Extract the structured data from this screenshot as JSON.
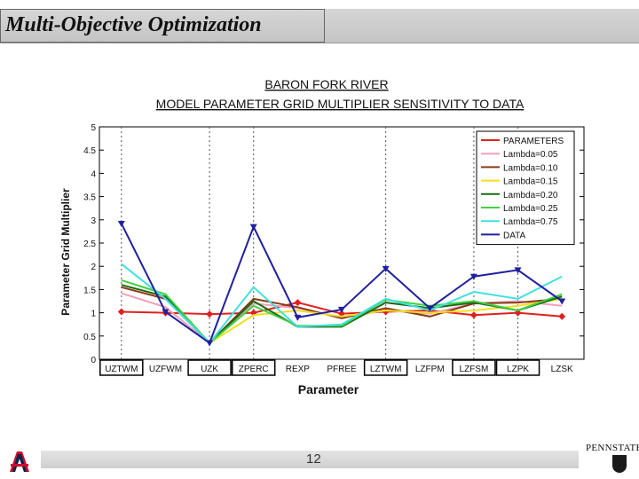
{
  "slide": {
    "title": "Multi-Objective Optimization",
    "page_number": "12",
    "brand": "PENNSTATE",
    "logo_letter": "A"
  },
  "chart_data": {
    "type": "line",
    "title": "BARON FORK RIVER",
    "subtitle": "MODEL PARAMETER GRID MULTIPLIER SENSITIVITY TO DATA",
    "xlabel": "Parameter",
    "ylabel": "Parameter Grid Multiplier",
    "ylim": [
      0,
      5
    ],
    "yticks": [
      "0",
      "0.5",
      "1",
      "1.5",
      "2",
      "2.5",
      "3",
      "3.5",
      "4",
      "4.5",
      "5"
    ],
    "categories": [
      "UZTWM",
      "UZFWM",
      "UZK",
      "ZPERC",
      "REXP",
      "PFREE",
      "LZTWM",
      "LZFPM",
      "LZFSM",
      "LZPK",
      "LZSK"
    ],
    "boxed_categories": [
      "UZTWM",
      "UZK",
      "ZPERC",
      "LZTWM",
      "LZFSM",
      "LZPK"
    ],
    "legend_position": "top-right",
    "series": [
      {
        "name": "PARAMETERS",
        "color": "#e02020",
        "marker": "diamond",
        "values": [
          1.02,
          1.0,
          0.97,
          1.0,
          1.22,
          0.98,
          1.02,
          1.05,
          0.95,
          1.0,
          0.92
        ]
      },
      {
        "name": "Lambda=0.05",
        "color": "#f0a0b8",
        "marker": "none",
        "values": [
          1.42,
          1.12,
          0.35,
          1.2,
          1.1,
          0.9,
          1.05,
          0.98,
          1.2,
          1.25,
          1.15
        ]
      },
      {
        "name": "Lambda=0.10",
        "color": "#8b3a1a",
        "marker": "none",
        "values": [
          1.55,
          1.3,
          0.35,
          1.3,
          1.12,
          0.88,
          1.1,
          0.92,
          1.2,
          1.22,
          1.3
        ]
      },
      {
        "name": "Lambda=0.15",
        "color": "#f0e020",
        "marker": "none",
        "values": [
          1.6,
          1.35,
          0.35,
          0.95,
          1.05,
          0.92,
          1.05,
          1.0,
          1.05,
          1.15,
          1.3
        ]
      },
      {
        "name": "Lambda=0.20",
        "color": "#1a6a1a",
        "marker": "none",
        "values": [
          1.6,
          1.35,
          0.35,
          1.25,
          0.7,
          0.7,
          1.22,
          1.1,
          1.22,
          1.05,
          1.35
        ]
      },
      {
        "name": "Lambda=0.25",
        "color": "#40d040",
        "marker": "none",
        "values": [
          1.7,
          1.4,
          0.35,
          1.15,
          0.72,
          0.72,
          1.28,
          1.15,
          1.25,
          1.05,
          1.4
        ]
      },
      {
        "name": "Lambda=0.75",
        "color": "#40e0e0",
        "marker": "none",
        "values": [
          2.05,
          1.3,
          0.35,
          1.55,
          0.7,
          0.75,
          1.3,
          1.05,
          1.45,
          1.3,
          1.78
        ]
      },
      {
        "name": "DATA",
        "color": "#2020a0",
        "marker": "triangle",
        "values": [
          2.92,
          1.02,
          0.35,
          2.85,
          0.9,
          1.07,
          1.95,
          1.1,
          1.78,
          1.92,
          1.25
        ]
      }
    ]
  }
}
